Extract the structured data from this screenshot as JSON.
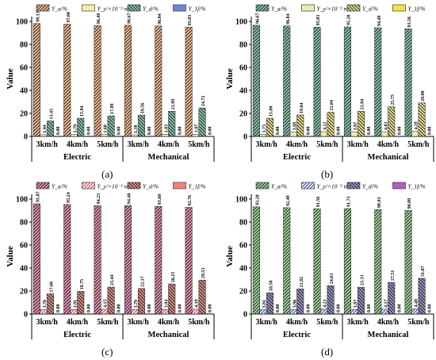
{
  "captions": [
    "(a)",
    "(b)",
    "(c)",
    "(d)"
  ],
  "chart_data": [
    {
      "type": "bar",
      "panel": "(a)",
      "ylabel": "Value",
      "ylim": [
        0,
        100
      ],
      "yticks": [
        "0",
        "20",
        "40",
        "60",
        "80",
        "100"
      ],
      "groups": [
        "Electric",
        "Mechanical"
      ],
      "categories": [
        "3km/h",
        "4km/h",
        "5km/h",
        "3km/h",
        "4km/h",
        "5km/h"
      ],
      "legend_placement": "top",
      "series": [
        {
          "name": "Y_a/%",
          "color": "#f28a3c",
          "values": [
            98.13,
            97.6,
            96.49,
            96.67,
            96.04,
            95.03
          ],
          "labels": [
            "98.13",
            "97.60",
            "96.49",
            "96.67",
            "96.04",
            "95.03"
          ]
        },
        {
          "name": "Y_y/×10⁻² m",
          "color": "#e8d34a",
          "values": [
            1.44,
            1.79,
            1.6,
            1.38,
            1.83,
            1.87
          ],
          "labels": [
            "1.44",
            "1.79",
            "1.60",
            "1.38",
            "1.83",
            "1.87"
          ]
        },
        {
          "name": "Y_d/%",
          "color": "#2e9c6a",
          "values": [
            13.43,
            15.84,
            17.89,
            18.56,
            21.89,
            24.72
          ],
          "labels": [
            "13.43",
            "15.84",
            "17.89",
            "18.56",
            "21.89",
            "24.72"
          ]
        },
        {
          "name": "Y_1f/%",
          "color": "#6f86d8",
          "values": [
            0,
            0,
            0,
            0,
            0,
            0
          ],
          "labels": [
            "0.00",
            "0.00",
            "0.00",
            "0.00",
            "0.00",
            "0.00"
          ]
        }
      ]
    },
    {
      "type": "bar",
      "panel": "(b)",
      "ylabel": "Value",
      "ylim": [
        0,
        100
      ],
      "yticks": [
        "0",
        "20",
        "40",
        "60",
        "80",
        "100"
      ],
      "groups": [
        "Electric",
        "Mechanical"
      ],
      "categories": [
        "3km/h",
        "4km/h",
        "5km/h",
        "3km/h",
        "4km/h",
        "5km/h"
      ],
      "legend_placement": "top",
      "series": [
        {
          "name": "Y_a/%",
          "color": "#2e9c6a",
          "values": [
            96.67,
            96.04,
            95.03,
            95.2,
            94.49,
            93.56
          ],
          "labels": [
            "96.67",
            "96.04",
            "95.03",
            "95.20",
            "94.49",
            "93.56"
          ]
        },
        {
          "name": "Y_y/×10⁻² m",
          "color": "#c9d94a",
          "values": [
            1.73,
            3.88,
            4.12,
            3.87,
            4.03,
            4.28
          ],
          "labels": [
            "1.73",
            "3.88",
            "4.12",
            "3.87",
            "4.03",
            "4.28"
          ]
        },
        {
          "name": "Y_d/%",
          "color": "#e2d13a",
          "values": [
            15.8,
            18.64,
            21.04,
            21.84,
            25.75,
            29.08
          ],
          "labels": [
            "15.80",
            "18.64",
            "21.04",
            "21.84",
            "25.75",
            "29.08"
          ]
        },
        {
          "name": "Y_1f/%",
          "color": "#f3e14a",
          "values": [
            0,
            0,
            0,
            0,
            0,
            0
          ],
          "labels": [
            "0.00",
            "0.00",
            "0.00",
            "0.00",
            "0.00",
            "0.00"
          ]
        }
      ]
    },
    {
      "type": "bar",
      "panel": "(c)",
      "ylabel": "Value",
      "ylim": [
        0,
        100
      ],
      "yticks": [
        "0",
        "20",
        "40",
        "60",
        "80",
        "100"
      ],
      "groups": [
        "Electric",
        "Mechanical"
      ],
      "categories": [
        "3km/h",
        "4km/h",
        "5km/h",
        "3km/h",
        "4km/h",
        "5km/h"
      ],
      "legend_placement": "top",
      "series": [
        {
          "name": "Y_a/%",
          "color": "#d6407a",
          "values": [
            95.87,
            95.24,
            94.23,
            94.4,
            93.6,
            92.76
          ],
          "labels": [
            "95.87",
            "95.24",
            "94.23",
            "94.40",
            "93.60",
            "92.76"
          ]
        },
        {
          "name": "Y_y/×10⁻² m",
          "color": "#c94c5c",
          "values": [
            3.76,
            3.91,
            4.15,
            3.79,
            3.94,
            4.19
          ],
          "labels": [
            "3.76",
            "3.91",
            "4.15",
            "3.79",
            "3.94",
            "4.19"
          ]
        },
        {
          "name": "Y_d/%",
          "color": "#c0392b",
          "values": [
            17.6,
            19.75,
            23.44,
            22.17,
            26.15,
            29.53
          ],
          "labels": [
            "17.60",
            "19.75",
            "23.44",
            "22.17",
            "26.15",
            "29.53"
          ]
        },
        {
          "name": "Y_1f/%",
          "color": "#f0827a",
          "values": [
            0,
            0,
            0,
            0,
            0,
            0
          ],
          "labels": [
            "0.00",
            "0.00",
            "0.00",
            "0.00",
            "0.00",
            "0.00"
          ]
        }
      ]
    },
    {
      "type": "bar",
      "panel": "(d)",
      "ylabel": "Value",
      "ylim": [
        0,
        100
      ],
      "yticks": [
        "0",
        "20",
        "40",
        "60",
        "80",
        "100"
      ],
      "groups": [
        "Electric",
        "Mechanical"
      ],
      "categories": [
        "3km/h",
        "4km/h",
        "5km/h",
        "3km/h",
        "4km/h",
        "5km/h"
      ],
      "legend_placement": "top",
      "series": [
        {
          "name": "Y_a/%",
          "color": "#5ab84a",
          "values": [
            93.2,
            92.49,
            91.56,
            91.73,
            90.93,
            90.09
          ],
          "labels": [
            "93.20",
            "92.49",
            "91.56",
            "91.73",
            "90.93",
            "90.09"
          ]
        },
        {
          "name": "Y_y/×10⁻² m",
          "color": "#3f4fa8",
          "values": [
            3.81,
            3.96,
            4.21,
            3.97,
            4.17,
            4.48
          ],
          "labels": [
            "3.81",
            "3.96",
            "4.21",
            "3.97",
            "4.17",
            "4.48"
          ]
        },
        {
          "name": "Y_d/%",
          "color": "#4a3f9a",
          "values": [
            18.5,
            21.82,
            24.63,
            23.33,
            27.51,
            31.07
          ],
          "labels": [
            "18.50",
            "21.82",
            "24.63",
            "23.33",
            "27.51",
            "31.07"
          ]
        },
        {
          "name": "Y_1f/%",
          "color": "#b15fc7",
          "values": [
            0,
            0,
            0,
            0,
            0,
            0
          ],
          "labels": [
            "0.00",
            "0.00",
            "0.00",
            "0.00",
            "0.00",
            "0.00"
          ]
        }
      ]
    }
  ]
}
